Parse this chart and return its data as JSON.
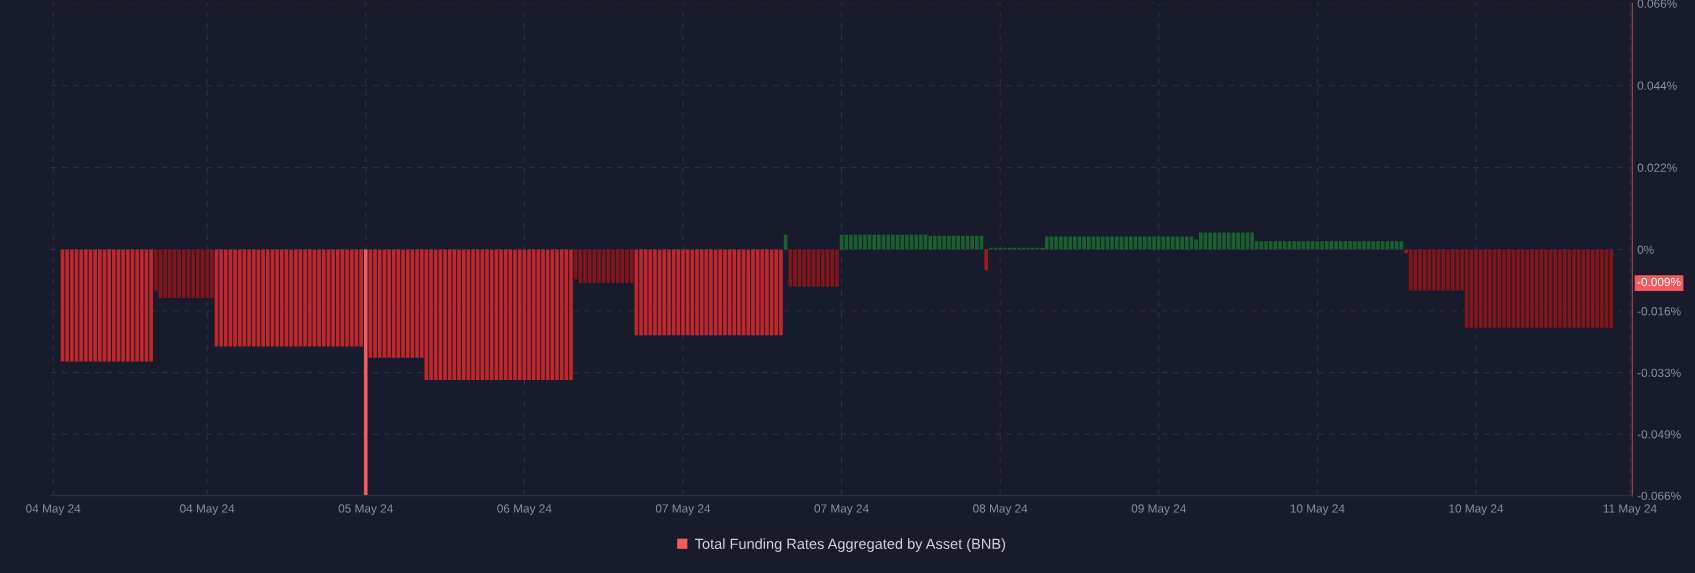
{
  "chart_data": {
    "type": "bar",
    "categories": [
      "04 May 24",
      null,
      null,
      null,
      null,
      null,
      null,
      null,
      null,
      null,
      null,
      null,
      null,
      null,
      null,
      null,
      null,
      null,
      null,
      null,
      null,
      null,
      null,
      null,
      null,
      null,
      null,
      null,
      null,
      null,
      null,
      null,
      null,
      "04 May 24",
      null,
      null,
      null,
      null,
      null,
      null,
      null,
      null,
      null,
      null,
      null,
      null,
      null,
      null,
      null,
      null,
      null,
      null,
      null,
      null,
      null,
      null,
      null,
      null,
      null,
      null,
      null,
      null,
      null,
      null,
      null,
      null,
      null,
      "05 May 24",
      null,
      null,
      null,
      null,
      null,
      null,
      null,
      null,
      null,
      null,
      null,
      null,
      null,
      null,
      null,
      null,
      null,
      null,
      null,
      null,
      null,
      null,
      null,
      null,
      null,
      null,
      null,
      null,
      null,
      null,
      null,
      null,
      null,
      "06 May 24",
      null,
      null,
      null,
      null,
      null,
      null,
      null,
      null,
      null,
      null,
      null,
      null,
      null,
      null,
      null,
      null,
      null,
      null,
      null,
      null,
      null,
      null,
      null,
      null,
      null,
      null,
      null,
      null,
      null,
      null,
      null,
      null,
      null,
      "07 May 24",
      null,
      null,
      null,
      null,
      null,
      null,
      null,
      null,
      null,
      null,
      null,
      null,
      null,
      null,
      null,
      null,
      null,
      null,
      null,
      null,
      null,
      null,
      null,
      null,
      null,
      null,
      null,
      null,
      null,
      null,
      null,
      null,
      null,
      "07 May 24",
      null,
      null,
      null,
      null,
      null,
      null,
      null,
      null,
      null,
      null,
      null,
      null,
      null,
      null,
      null,
      null,
      null,
      null,
      null,
      null,
      null,
      null,
      null,
      null,
      null,
      null,
      null,
      null,
      null,
      null,
      null,
      null,
      null,
      "08 May 24",
      null,
      null,
      null,
      null,
      null,
      null,
      null,
      null,
      null,
      null,
      null,
      null,
      null,
      null,
      null,
      null,
      null,
      null,
      null,
      null,
      null,
      null,
      null,
      null,
      null,
      null,
      null,
      null,
      null,
      null,
      null,
      null,
      null,
      "09 May 24",
      null,
      null,
      null,
      null,
      null,
      null,
      null,
      null,
      null,
      null,
      null,
      null,
      null,
      null,
      null,
      null,
      null,
      null,
      null,
      null,
      null,
      null,
      null,
      null,
      null,
      null,
      null,
      null,
      null,
      null,
      null,
      null,
      null,
      "10 May 24",
      null,
      null,
      null,
      null,
      null,
      null,
      null,
      null,
      null,
      null,
      null,
      null,
      null,
      null,
      null,
      null,
      null,
      null,
      null,
      null,
      null,
      null,
      null,
      null,
      null,
      null,
      null,
      null,
      null,
      null,
      null,
      null,
      null,
      "10 May 24",
      null,
      null,
      null,
      null,
      null,
      null,
      null,
      null,
      null,
      null,
      null,
      null,
      null,
      null,
      null,
      null,
      null,
      null,
      null,
      null,
      null,
      null,
      null,
      null,
      null,
      null,
      null,
      null,
      null,
      null,
      null,
      null,
      "11 May 24"
    ],
    "series": [
      {
        "name": "Total Funding Rates Aggregated by Asset (BNB)",
        "color": "#f25c5c",
        "values": [
          null,
          null,
          -0.03,
          -0.03,
          -0.03,
          -0.03,
          -0.03,
          -0.03,
          -0.03,
          -0.03,
          -0.03,
          -0.03,
          -0.03,
          -0.03,
          -0.03,
          -0.03,
          -0.03,
          -0.03,
          -0.03,
          -0.03,
          -0.03,
          -0.03,
          -0.011,
          -0.013,
          -0.013,
          -0.013,
          -0.013,
          -0.013,
          -0.013,
          -0.013,
          -0.013,
          -0.013,
          -0.013,
          -0.013,
          -0.013,
          -0.026,
          -0.026,
          -0.026,
          -0.026,
          -0.026,
          -0.026,
          -0.026,
          -0.026,
          -0.026,
          -0.026,
          -0.026,
          -0.026,
          -0.026,
          -0.026,
          -0.026,
          -0.026,
          -0.026,
          -0.026,
          -0.026,
          -0.026,
          -0.026,
          -0.026,
          -0.026,
          -0.026,
          -0.026,
          -0.026,
          -0.026,
          -0.026,
          -0.026,
          -0.026,
          -0.026,
          -0.026,
          -0.066,
          -0.029,
          -0.029,
          -0.029,
          -0.029,
          -0.029,
          -0.029,
          -0.029,
          -0.029,
          -0.029,
          -0.029,
          -0.029,
          -0.029,
          -0.035,
          -0.035,
          -0.035,
          -0.035,
          -0.035,
          -0.035,
          -0.035,
          -0.035,
          -0.035,
          -0.035,
          -0.035,
          -0.035,
          -0.035,
          -0.035,
          -0.035,
          -0.035,
          -0.035,
          -0.035,
          -0.035,
          -0.035,
          -0.035,
          -0.035,
          -0.035,
          -0.035,
          -0.035,
          -0.035,
          -0.035,
          -0.035,
          -0.035,
          -0.035,
          -0.035,
          -0.035,
          -0.008,
          -0.009,
          -0.009,
          -0.009,
          -0.009,
          -0.009,
          -0.009,
          -0.009,
          -0.009,
          -0.009,
          -0.009,
          -0.009,
          -0.009,
          -0.023,
          -0.023,
          -0.023,
          -0.023,
          -0.023,
          -0.023,
          -0.023,
          -0.023,
          -0.023,
          -0.023,
          -0.023,
          -0.023,
          -0.023,
          -0.023,
          -0.023,
          -0.023,
          -0.023,
          -0.023,
          -0.023,
          -0.023,
          -0.023,
          -0.023,
          -0.023,
          -0.023,
          -0.023,
          -0.023,
          -0.023,
          -0.023,
          -0.023,
          -0.023,
          -0.023,
          -0.023,
          0.004,
          -0.01,
          -0.01,
          -0.01,
          -0.01,
          -0.01,
          -0.01,
          -0.01,
          -0.01,
          -0.01,
          -0.01,
          -0.01,
          0.004,
          0.004,
          0.004,
          0.004,
          0.004,
          0.004,
          0.004,
          0.004,
          0.004,
          0.004,
          0.004,
          0.004,
          0.004,
          0.004,
          0.004,
          0.004,
          0.004,
          0.004,
          0.004,
          0.0037,
          0.0037,
          0.0037,
          0.0037,
          0.0037,
          0.0037,
          0.0037,
          0.0037,
          0.0037,
          0.0037,
          0.0037,
          0.0037,
          -0.0056,
          0.0005,
          0.0005,
          0.0005,
          0.0005,
          0.0005,
          0.0005,
          0.0005,
          0.0005,
          0.0005,
          0.0005,
          0.0005,
          0.0005,
          0.0035,
          0.0035,
          0.0035,
          0.0035,
          0.0035,
          0.0035,
          0.0035,
          0.0035,
          0.0035,
          0.0035,
          0.0035,
          0.0035,
          0.0035,
          0.0035,
          0.0035,
          0.0035,
          0.0035,
          0.0035,
          0.0035,
          0.0035,
          0.0035,
          0.0035,
          0.0035,
          0.0035,
          0.0035,
          0.0035,
          0.0035,
          0.0035,
          0.0035,
          0.0035,
          0.0035,
          0.0035,
          0.0027,
          0.0046,
          0.0046,
          0.0046,
          0.0046,
          0.0046,
          0.0046,
          0.0046,
          0.0046,
          0.0046,
          0.0046,
          0.0046,
          0.0046,
          0.0022,
          0.0022,
          0.0022,
          0.0022,
          0.0022,
          0.0022,
          0.0022,
          0.0022,
          0.0022,
          0.0022,
          0.0022,
          0.0022,
          0.0022,
          0.0022,
          0.0022,
          0.0022,
          0.0022,
          0.0022,
          0.0022,
          0.0022,
          0.0022,
          0.0022,
          0.0022,
          0.0022,
          0.0022,
          0.0022,
          0.0022,
          0.0022,
          0.0022,
          0.0022,
          0.0022,
          0.0022,
          -0.001,
          -0.011,
          -0.011,
          -0.011,
          -0.011,
          -0.011,
          -0.011,
          -0.011,
          -0.011,
          -0.011,
          -0.011,
          -0.011,
          -0.011,
          -0.021,
          -0.021,
          -0.021,
          -0.021,
          -0.021,
          -0.021,
          -0.021,
          -0.021,
          -0.021,
          -0.021,
          -0.021,
          -0.021,
          -0.021,
          -0.021,
          -0.021,
          -0.021,
          -0.021,
          -0.021,
          -0.021,
          -0.021,
          -0.021,
          -0.021,
          -0.021,
          -0.021,
          -0.021,
          -0.021,
          -0.021,
          -0.021,
          -0.021,
          -0.021,
          -0.021,
          -0.021,
          null,
          null,
          null,
          null
        ],
        "colors": [
          null,
          null,
          "#c0272d",
          "#c0272d",
          "#c0272d",
          "#c0272d",
          "#c0272d",
          "#c0272d",
          "#c0272d",
          "#c0272d",
          "#c0272d",
          "#c0272d",
          "#c0272d",
          "#c0272d",
          "#c0272d",
          "#c0272d",
          "#c0272d",
          "#c0272d",
          "#c0272d",
          "#c0272d",
          "#c0272d",
          "#c0272d",
          "#80151a",
          "#80151a",
          "#80151a",
          "#80151a",
          "#80151a",
          "#80151a",
          "#80151a",
          "#80151a",
          "#80151a",
          "#80151a",
          "#80151a",
          "#80151a",
          "#80151a",
          "#c0272d",
          "#c0272d",
          "#c0272d",
          "#c0272d",
          "#c0272d",
          "#c0272d",
          "#c0272d",
          "#c0272d",
          "#c0272d",
          "#c0272d",
          "#c0272d",
          "#c0272d",
          "#c0272d",
          "#c0272d",
          "#c0272d",
          "#c0272d",
          "#c0272d",
          "#c0272d",
          "#c0272d",
          "#c0272d",
          "#c0272d",
          "#c0272d",
          "#c0272d",
          "#c0272d",
          "#c0272d",
          "#c0272d",
          "#c0272d",
          "#c0272d",
          "#c0272d",
          "#c0272d",
          "#c0272d",
          "#c0272d",
          "#f25c5c",
          "#c0272d",
          "#c0272d",
          "#c0272d",
          "#c0272d",
          "#c0272d",
          "#c0272d",
          "#c0272d",
          "#c0272d",
          "#c0272d",
          "#c0272d",
          "#c0272d",
          "#c0272d",
          "#c0272d",
          "#c0272d",
          "#c0272d",
          "#c0272d",
          "#c0272d",
          "#c0272d",
          "#c0272d",
          "#c0272d",
          "#c0272d",
          "#c0272d",
          "#c0272d",
          "#c0272d",
          "#c0272d",
          "#c0272d",
          "#c0272d",
          "#c0272d",
          "#c0272d",
          "#c0272d",
          "#c0272d",
          "#c0272d",
          "#c0272d",
          "#c0272d",
          "#c0272d",
          "#c0272d",
          "#c0272d",
          "#c0272d",
          "#c0272d",
          "#c0272d",
          "#c0272d",
          "#c0272d",
          "#c0272d",
          "#c0272d",
          "#80151a",
          "#80151a",
          "#80151a",
          "#80151a",
          "#80151a",
          "#80151a",
          "#80151a",
          "#80151a",
          "#80151a",
          "#80151a",
          "#80151a",
          "#80151a",
          "#80151a",
          "#c0272d",
          "#c0272d",
          "#c0272d",
          "#c0272d",
          "#c0272d",
          "#c0272d",
          "#c0272d",
          "#c0272d",
          "#c0272d",
          "#c0272d",
          "#c0272d",
          "#c0272d",
          "#c0272d",
          "#c0272d",
          "#c0272d",
          "#c0272d",
          "#c0272d",
          "#c0272d",
          "#c0272d",
          "#c0272d",
          "#c0272d",
          "#c0272d",
          "#c0272d",
          "#c0272d",
          "#c0272d",
          "#c0272d",
          "#c0272d",
          "#c0272d",
          "#c0272d",
          "#c0272d",
          "#c0272d",
          "#c0272d",
          "#1c6030",
          "#80151a",
          "#80151a",
          "#80151a",
          "#80151a",
          "#80151a",
          "#80151a",
          "#80151a",
          "#80151a",
          "#80151a",
          "#80151a",
          "#80151a",
          "#1c6030",
          "#1c6030",
          "#1c6030",
          "#1c6030",
          "#1c6030",
          "#1c6030",
          "#1c6030",
          "#1c6030",
          "#1c6030",
          "#1c6030",
          "#1c6030",
          "#1c6030",
          "#1c6030",
          "#1c6030",
          "#1c6030",
          "#1c6030",
          "#1c6030",
          "#1c6030",
          "#1c6030",
          "#1c6030",
          "#1c6030",
          "#1c6030",
          "#1c6030",
          "#1c6030",
          "#1c6030",
          "#1c6030",
          "#1c6030",
          "#1c6030",
          "#1c6030",
          "#1c6030",
          "#1c6030",
          "#9a1a1e",
          "#1c6030",
          "#1c6030",
          "#1c6030",
          "#1c6030",
          "#1c6030",
          "#1c6030",
          "#1c6030",
          "#1c6030",
          "#1c6030",
          "#1c6030",
          "#1c6030",
          "#1c6030",
          "#1c6030",
          "#1c6030",
          "#1c6030",
          "#1c6030",
          "#1c6030",
          "#1c6030",
          "#1c6030",
          "#1c6030",
          "#1c6030",
          "#1c6030",
          "#1c6030",
          "#1c6030",
          "#1c6030",
          "#1c6030",
          "#1c6030",
          "#1c6030",
          "#1c6030",
          "#1c6030",
          "#1c6030",
          "#1c6030",
          "#1c6030",
          "#1c6030",
          "#1c6030",
          "#1c6030",
          "#1c6030",
          "#1c6030",
          "#1c6030",
          "#1c6030",
          "#1c6030",
          "#1c6030",
          "#1c6030",
          "#1c6030",
          "#1c6030",
          "#1c6030",
          "#1c6030",
          "#1c6030",
          "#1c6030",
          "#1c6030",
          "#1c6030",
          "#1c6030",
          "#1c6030",
          "#1c6030",
          "#1c6030",
          "#1c6030",
          "#1c6030",
          "#1c6030",
          "#1c6030",
          "#1c6030",
          "#1c6030",
          "#1c6030",
          "#1c6030",
          "#1c6030",
          "#1c6030",
          "#1c6030",
          "#1c6030",
          "#1c6030",
          "#1c6030",
          "#1c6030",
          "#1c6030",
          "#1c6030",
          "#1c6030",
          "#1c6030",
          "#1c6030",
          "#1c6030",
          "#1c6030",
          "#1c6030",
          "#1c6030",
          "#1c6030",
          "#1c6030",
          "#1c6030",
          "#1c6030",
          "#1c6030",
          "#1c6030",
          "#1c6030",
          "#1c6030",
          "#1c6030",
          "#1c6030",
          "#9a1a1e",
          "#80151a",
          "#80151a",
          "#80151a",
          "#80151a",
          "#80151a",
          "#80151a",
          "#80151a",
          "#80151a",
          "#80151a",
          "#80151a",
          "#80151a",
          "#80151a",
          "#80151a",
          "#80151a",
          "#80151a",
          "#80151a",
          "#80151a",
          "#80151a",
          "#80151a",
          "#80151a",
          "#80151a",
          "#80151a",
          "#80151a",
          "#80151a",
          "#80151a",
          "#80151a",
          "#80151a",
          "#80151a",
          "#80151a",
          "#80151a",
          "#80151a",
          "#80151a",
          "#80151a",
          "#80151a",
          "#80151a",
          "#80151a",
          "#80151a",
          "#80151a",
          "#80151a",
          "#80151a",
          "#80151a",
          "#80151a",
          "#80151a",
          "#80151a",
          null,
          null,
          null,
          null
        ]
      }
    ],
    "ylim": [
      -0.066,
      0.066
    ],
    "yticks": [
      {
        "value": 0.066,
        "label": "0.066%"
      },
      {
        "value": 0.044,
        "label": "0.044%"
      },
      {
        "value": 0.022,
        "label": "0.022%"
      },
      {
        "value": 0,
        "label": "0%"
      },
      {
        "value": -0.0165,
        "label": "-0.016%"
      },
      {
        "value": -0.033,
        "label": "-0.033%"
      },
      {
        "value": -0.0495,
        "label": "-0.049%"
      },
      {
        "value": -0.066,
        "label": "-0.066%"
      }
    ],
    "annotations": [
      "-0.009%"
    ],
    "grid": true,
    "legend": "bottom"
  }
}
